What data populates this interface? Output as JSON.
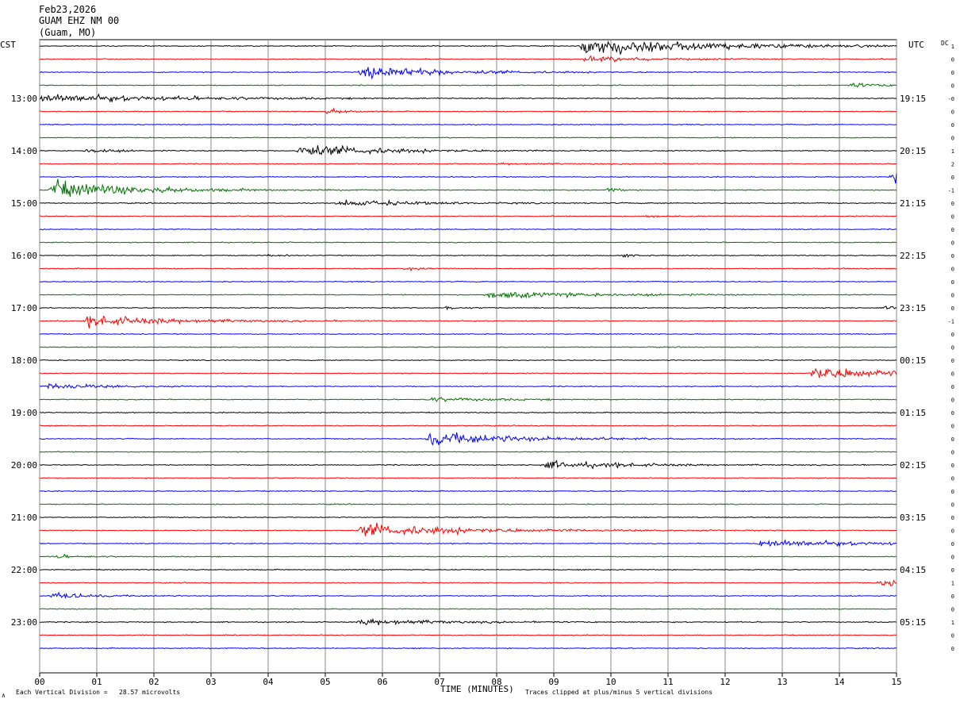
{
  "header": {
    "date": "Feb23,2026",
    "station": "GUAM EHZ NM 00",
    "location": "(Guam, MO)"
  },
  "axis": {
    "left_label": "CST",
    "right_label": "UTC",
    "dc_label": "DC",
    "xlabel": "TIME (MINUTES)"
  },
  "footer": {
    "division_note": "Each Vertical Division =   28.57 microvolts",
    "clip_note": "Traces clipped at plus/minus 5 vertical divisions",
    "corner_mark": "∧"
  },
  "chart_data": {
    "type": "line",
    "title": "",
    "xlabel": "TIME (MINUTES)",
    "xlim": [
      0,
      15
    ],
    "x_ticks": [
      "00",
      "01",
      "02",
      "03",
      "04",
      "05",
      "06",
      "07",
      "08",
      "09",
      "10",
      "11",
      "12",
      "13",
      "14",
      "15"
    ],
    "left_time_labels": [
      "13:00",
      "14:00",
      "15:00",
      "16:00",
      "17:00",
      "18:00",
      "19:00",
      "20:00",
      "21:00",
      "22:00",
      "23:00"
    ],
    "right_time_labels": [
      "19:15",
      "20:15",
      "21:15",
      "22:15",
      "23:15",
      "00:15",
      "01:15",
      "02:15",
      "03:15",
      "04:15",
      "05:15"
    ],
    "dc_offsets": [
      "1",
      "0",
      "0",
      "0",
      "-0",
      "0",
      "0",
      "0",
      "1",
      "2",
      "0",
      "-1",
      "0",
      "0",
      "0",
      "0",
      "0",
      "0",
      "0",
      "0",
      "0",
      "-1",
      "0",
      "0",
      "0",
      "0",
      "0",
      "0",
      "0",
      "0",
      "0",
      "0",
      "0",
      "0",
      "0",
      "0",
      "0",
      "0",
      "0",
      "0",
      "0",
      "1",
      "0",
      "0",
      "1",
      "0",
      "0"
    ],
    "trace_colors": [
      "#000000",
      "#ff0000",
      "#0000ff",
      "#007000"
    ],
    "grid": true,
    "events": [
      {
        "row": 0,
        "t": 9.5,
        "amp": 7,
        "dur": 4.5
      },
      {
        "row": 1,
        "t": 9.5,
        "amp": 2,
        "dur": 3
      },
      {
        "row": 2,
        "t": 5.6,
        "amp": 5,
        "dur": 3
      },
      {
        "row": 3,
        "t": 14.2,
        "amp": 2,
        "dur": 1
      },
      {
        "row": 4,
        "t": 0,
        "amp": 3.5,
        "dur": 5
      },
      {
        "row": 5,
        "t": 5.0,
        "amp": 2,
        "dur": 0.8
      },
      {
        "row": 8,
        "t": 4.5,
        "amp": 5,
        "dur": 3
      },
      {
        "row": 8,
        "t": 0.8,
        "amp": 2,
        "dur": 1
      },
      {
        "row": 9,
        "t": 8,
        "amp": 0.6,
        "dur": 3
      },
      {
        "row": 10,
        "t": 14.9,
        "amp": 5,
        "dur": 1.5
      },
      {
        "row": 11,
        "t": 0.2,
        "amp": 7,
        "dur": 3
      },
      {
        "row": 11,
        "t": 9.9,
        "amp": 2,
        "dur": 0.5
      },
      {
        "row": 12,
        "t": 5.2,
        "amp": 2.5,
        "dur": 3
      },
      {
        "row": 13,
        "t": 10.6,
        "amp": 1.5,
        "dur": 0.5
      },
      {
        "row": 16,
        "t": 4.0,
        "amp": 1.5,
        "dur": 0.4
      },
      {
        "row": 16,
        "t": 10.2,
        "amp": 2,
        "dur": 0.4
      },
      {
        "row": 16,
        "t": 11.1,
        "amp": 0.7,
        "dur": 0.3
      },
      {
        "row": 17,
        "t": 6.4,
        "amp": 1.5,
        "dur": 0.6
      },
      {
        "row": 19,
        "t": 7.8,
        "amp": 3,
        "dur": 3.5
      },
      {
        "row": 20,
        "t": 7.1,
        "amp": 1.5,
        "dur": 0.6
      },
      {
        "row": 20,
        "t": 14.8,
        "amp": 1.5,
        "dur": 1.5
      },
      {
        "row": 21,
        "t": 0.8,
        "amp": 4,
        "dur": 3.5
      },
      {
        "row": 25,
        "t": 13.5,
        "amp": 5.5,
        "dur": 3
      },
      {
        "row": 26,
        "t": 0.1,
        "amp": 2.5,
        "dur": 2
      },
      {
        "row": 27,
        "t": 6.8,
        "amp": 1.5,
        "dur": 2.5
      },
      {
        "row": 30,
        "t": 6.8,
        "amp": 6,
        "dur": 3
      },
      {
        "row": 32,
        "t": 8.8,
        "amp": 3,
        "dur": 3
      },
      {
        "row": 37,
        "t": 5.6,
        "amp": 5,
        "dur": 4
      },
      {
        "row": 38,
        "t": 12.6,
        "amp": 3,
        "dur": 4
      },
      {
        "row": 39,
        "t": 0.2,
        "amp": 1.5,
        "dur": 1
      },
      {
        "row": 41,
        "t": 14.7,
        "amp": 3,
        "dur": 2
      },
      {
        "row": 42,
        "t": 0.2,
        "amp": 2.5,
        "dur": 1.5
      },
      {
        "row": 44,
        "t": 5.6,
        "amp": 2.5,
        "dur": 3
      }
    ]
  }
}
